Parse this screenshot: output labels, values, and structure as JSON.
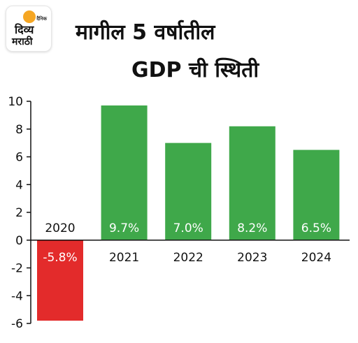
{
  "logo": {
    "small_text": "दैनिक",
    "word1": "दिव्य",
    "word2": "मराठी"
  },
  "title": {
    "line1": "मागील 5 वर्षातील",
    "line2": "GDP ची स्थिती"
  },
  "colors": {
    "positive_bar": "#3fa84a",
    "negative_bar": "#e32b2b",
    "axis": "#111111",
    "text": "#111111"
  },
  "chart_data": {
    "type": "bar",
    "categories": [
      "2020",
      "2021",
      "2022",
      "2023",
      "2024"
    ],
    "values": [
      -5.8,
      9.7,
      7.0,
      8.2,
      6.5
    ],
    "data_labels": [
      "-5.8%",
      "9.7%",
      "7.0%",
      "8.2%",
      "6.5%"
    ],
    "ylim": [
      -6,
      10
    ],
    "yticks": [
      10,
      8,
      6,
      4,
      2,
      0,
      -2,
      -4,
      -6
    ],
    "title": "मागील 5 वर्षातील GDP ची स्थिती",
    "xlabel": "",
    "ylabel": "",
    "grid": false
  }
}
